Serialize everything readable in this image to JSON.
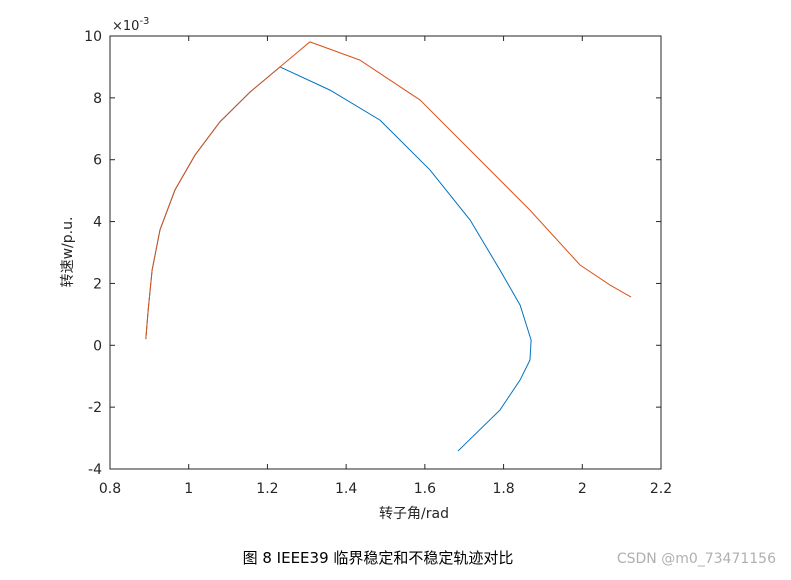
{
  "chart_data": {
    "type": "line",
    "x_label": "转子角/rad",
    "y_label": "转速w/p.u.",
    "y_multiplier": {
      "base": "×10",
      "exponent": "-3"
    },
    "xlim": [
      0.8,
      2.2
    ],
    "xticks": [
      0.8,
      1,
      1.2,
      1.4,
      1.6,
      1.8,
      2,
      2.2
    ],
    "ylim": [
      -4,
      10
    ],
    "yticks": [
      -4,
      -2,
      0,
      2,
      4,
      6,
      8,
      10
    ],
    "box": true,
    "series": [
      {
        "color": "#0072bd",
        "x": [
          0.891,
          0.897,
          0.907,
          0.927,
          0.965,
          1.016,
          1.079,
          1.156,
          1.232,
          1.359,
          1.486,
          1.613,
          1.715,
          1.791,
          1.842,
          1.87,
          1.867,
          1.842,
          1.791,
          1.684
        ],
        "values": [
          0.2,
          1.14,
          2.43,
          3.73,
          5.02,
          6.15,
          7.22,
          8.19,
          9.0,
          8.25,
          7.28,
          5.67,
          4.05,
          2.43,
          1.3,
          0.17,
          -0.48,
          -1.12,
          -2.09,
          -3.42
        ]
      },
      {
        "color": "#d95319",
        "x": [
          0.891,
          0.897,
          0.907,
          0.927,
          0.965,
          1.016,
          1.079,
          1.156,
          1.232,
          1.308,
          1.435,
          1.588,
          1.74,
          1.867,
          1.994,
          2.07,
          2.124
        ],
        "values": [
          0.2,
          1.14,
          2.43,
          3.73,
          5.02,
          6.15,
          7.22,
          8.19,
          9.0,
          9.81,
          9.22,
          7.93,
          5.99,
          4.37,
          2.6,
          1.95,
          1.56
        ]
      }
    ]
  },
  "caption": "图 8 IEEE39 临界稳定和不稳定轨迹对比",
  "watermark": "CSDN @m0_73471156"
}
